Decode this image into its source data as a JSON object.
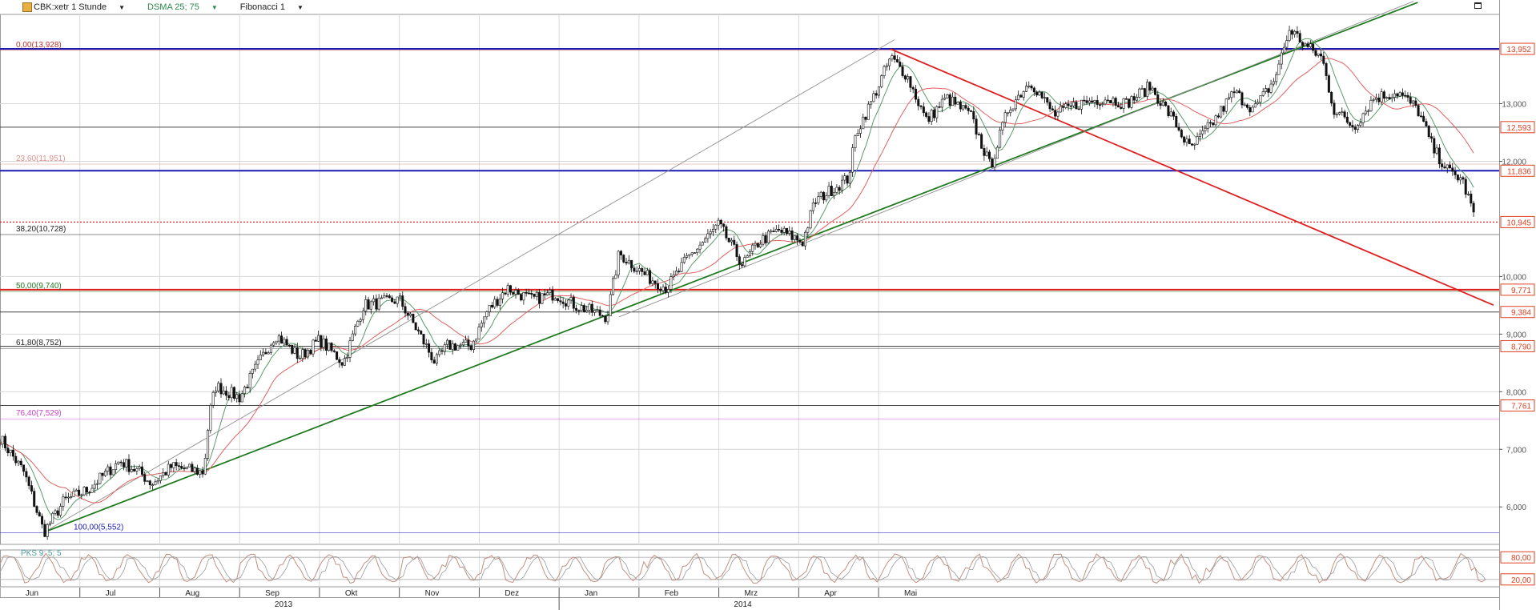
{
  "toolbar": {
    "symbol": "CBK:xetr 1 Stunde",
    "indicator": "DSMA 25; 75",
    "fibonacci": "Fibonacci 1"
  },
  "lower_panel_label": "PKS 9; 5; 5",
  "colors": {
    "background": "#ffffff",
    "grid": "#d8d8d8",
    "fib_line": "#1a1ab4",
    "resistance": "#e02020",
    "support": "#1e7a1e",
    "channel": "#909090",
    "candle": "#111111",
    "sma_fast": "#5a9a6a",
    "sma_slow": "#e06060",
    "oscillator": "#c09080",
    "label_box": "#e04020"
  },
  "chart_data": [
    {
      "type": "candlestick",
      "title": "CBK:xetr 1 Stunde",
      "x_months": [
        {
          "label": "Jun",
          "t": 0.3
        },
        {
          "label": "Jul",
          "t": 1.3
        },
        {
          "label": "Aug",
          "t": 2.3
        },
        {
          "label": "Sep",
          "t": 3.3
        },
        {
          "label": "Okt",
          "t": 4.3
        },
        {
          "label": "Nov",
          "t": 5.3
        },
        {
          "label": "Dez",
          "t": 6.3
        },
        {
          "label": "Jan",
          "t": 7.3
        },
        {
          "label": "Feb",
          "t": 8.3
        },
        {
          "label": "Mrz",
          "t": 9.3
        },
        {
          "label": "Apr",
          "t": 10.3
        },
        {
          "label": "Mai",
          "t": 11.3
        }
      ],
      "years": [
        {
          "label": "2013",
          "t": 3.55
        },
        {
          "label": "2014",
          "t": 9.3
        }
      ],
      "ylim": [
        5.35,
        14.55
      ],
      "y_ticks": [
        {
          "value": 6.0,
          "label": "6,000"
        },
        {
          "value": 7.0,
          "label": "7,000"
        },
        {
          "value": 8.0,
          "label": "8,000"
        },
        {
          "value": 9.0,
          "label": "9,000"
        },
        {
          "value": 10.0,
          "label": "10,000"
        },
        {
          "value": 12.0,
          "label": "12,000"
        },
        {
          "value": 13.0,
          "label": "13,000"
        }
      ],
      "price_markers": [
        {
          "value": 13.952,
          "label": "13,952",
          "line": "fib"
        },
        {
          "value": 12.593,
          "label": "12,593",
          "line": "black"
        },
        {
          "value": 11.836,
          "label": "11,836",
          "line": "fib"
        },
        {
          "value": 10.945,
          "label": "10,945",
          "line": "dotted-red"
        },
        {
          "value": 9.771,
          "label": "9,771",
          "line": "red"
        },
        {
          "value": 9.384,
          "label": "9,384",
          "line": "black"
        },
        {
          "value": 8.79,
          "label": "8,790",
          "line": "black"
        },
        {
          "value": 7.761,
          "label": "7,761",
          "line": "black"
        }
      ],
      "fibonacci_levels": [
        {
          "label": "0,00(13,928)",
          "value": 13.928,
          "color": "#c03030"
        },
        {
          "label": "23,60(11,951)",
          "value": 11.951,
          "color": "#e09090"
        },
        {
          "label": "38,20(10,728)",
          "value": 10.728,
          "color": "#222222"
        },
        {
          "label": "50,00(9,740)",
          "value": 9.74,
          "color": "#1e7a1e"
        },
        {
          "label": "61,80(8,752)",
          "value": 8.752,
          "color": "#222222"
        },
        {
          "label": "76,40(7,529)",
          "value": 7.529,
          "color": "#d040d0"
        },
        {
          "label": "100,00(5,552)",
          "value": 5.552,
          "color": "#1a1ab4"
        }
      ],
      "price_path": [
        {
          "t": 0.0,
          "v": 7.2
        },
        {
          "t": 0.3,
          "v": 6.6
        },
        {
          "t": 0.55,
          "v": 5.56
        },
        {
          "t": 0.8,
          "v": 6.1
        },
        {
          "t": 1.1,
          "v": 6.3
        },
        {
          "t": 1.5,
          "v": 6.8
        },
        {
          "t": 1.75,
          "v": 6.6
        },
        {
          "t": 1.9,
          "v": 6.4
        },
        {
          "t": 2.15,
          "v": 6.7
        },
        {
          "t": 2.55,
          "v": 6.6
        },
        {
          "t": 2.62,
          "v": 7.6
        },
        {
          "t": 2.7,
          "v": 8.1
        },
        {
          "t": 3.0,
          "v": 7.9
        },
        {
          "t": 3.2,
          "v": 8.4
        },
        {
          "t": 3.45,
          "v": 9.0
        },
        {
          "t": 3.75,
          "v": 8.6
        },
        {
          "t": 4.0,
          "v": 8.9
        },
        {
          "t": 4.3,
          "v": 8.5
        },
        {
          "t": 4.55,
          "v": 9.5
        },
        {
          "t": 5.0,
          "v": 9.6
        },
        {
          "t": 5.25,
          "v": 9.0
        },
        {
          "t": 5.45,
          "v": 8.5
        },
        {
          "t": 5.6,
          "v": 8.8
        },
        {
          "t": 5.9,
          "v": 8.8
        },
        {
          "t": 6.1,
          "v": 9.4
        },
        {
          "t": 6.35,
          "v": 9.8
        },
        {
          "t": 6.65,
          "v": 9.6
        },
        {
          "t": 6.95,
          "v": 9.7
        },
        {
          "t": 7.2,
          "v": 9.5
        },
        {
          "t": 7.6,
          "v": 9.3
        },
        {
          "t": 7.75,
          "v": 10.4
        },
        {
          "t": 8.1,
          "v": 10.0
        },
        {
          "t": 8.35,
          "v": 9.8
        },
        {
          "t": 8.6,
          "v": 10.3
        },
        {
          "t": 9.0,
          "v": 10.9
        },
        {
          "t": 9.3,
          "v": 10.2
        },
        {
          "t": 9.5,
          "v": 10.6
        },
        {
          "t": 9.75,
          "v": 10.8
        },
        {
          "t": 10.05,
          "v": 10.6
        },
        {
          "t": 10.2,
          "v": 11.3
        },
        {
          "t": 10.4,
          "v": 11.5
        },
        {
          "t": 10.62,
          "v": 11.7
        },
        {
          "t": 10.72,
          "v": 12.5
        },
        {
          "t": 10.9,
          "v": 13.0
        },
        {
          "t": 11.15,
          "v": 13.8
        },
        {
          "t": 11.35,
          "v": 13.5
        },
        {
          "t": 11.6,
          "v": 12.7
        },
        {
          "t": 11.85,
          "v": 13.1
        },
        {
          "t": 12.15,
          "v": 12.8
        },
        {
          "t": 12.4,
          "v": 11.9
        },
        {
          "t": 12.62,
          "v": 12.9
        },
        {
          "t": 12.9,
          "v": 13.4
        },
        {
          "t": 13.2,
          "v": 12.8
        },
        {
          "t": 13.5,
          "v": 13.0
        },
        {
          "t": 13.85,
          "v": 13.1
        },
        {
          "t": 14.1,
          "v": 13.0
        },
        {
          "t": 14.4,
          "v": 13.3
        },
        {
          "t": 14.7,
          "v": 12.7
        },
        {
          "t": 14.9,
          "v": 12.2
        },
        {
          "t": 15.2,
          "v": 12.7
        },
        {
          "t": 15.45,
          "v": 13.2
        },
        {
          "t": 15.7,
          "v": 12.9
        },
        {
          "t": 15.95,
          "v": 13.4
        },
        {
          "t": 16.15,
          "v": 14.3
        },
        {
          "t": 16.35,
          "v": 14.0
        },
        {
          "t": 16.55,
          "v": 13.8
        },
        {
          "t": 16.7,
          "v": 12.9
        },
        {
          "t": 16.95,
          "v": 12.6
        },
        {
          "t": 17.2,
          "v": 13.1
        },
        {
          "t": 17.5,
          "v": 13.2
        },
        {
          "t": 17.75,
          "v": 12.9
        },
        {
          "t": 17.95,
          "v": 12.2
        },
        {
          "t": 18.15,
          "v": 11.8
        },
        {
          "t": 18.3,
          "v": 11.7
        },
        {
          "t": 18.45,
          "v": 11.1
        }
      ],
      "trend_lines": [
        {
          "name": "support",
          "from": [
            0.55,
            5.56
          ],
          "to": [
            12.2,
            11.79
          ],
          "extend_to_t": 17.75,
          "color": "#1e7a1e"
        },
        {
          "name": "resistance",
          "from": [
            11.15,
            13.95
          ],
          "to": [
            14.8,
            11.8
          ],
          "extend_to_t": 18.7,
          "color": "#e02020"
        },
        {
          "name": "channel-upper",
          "from": [
            0.55,
            5.56
          ],
          "to": [
            11.0,
            13.95
          ],
          "extend_to_t": 11.2,
          "color": "#909090"
        },
        {
          "name": "channel-lower",
          "from": [
            7.75,
            9.3
          ],
          "to": [
            12.2,
            11.75
          ],
          "extend_to_t": 17.7,
          "color": "#909090"
        }
      ]
    },
    {
      "type": "line",
      "title": "PKS 9; 5; 5",
      "ylim": [
        0,
        100
      ],
      "y_ticks": [
        {
          "value": 80,
          "label": "80,00"
        },
        {
          "value": 20,
          "label": "20,00"
        }
      ]
    }
  ]
}
